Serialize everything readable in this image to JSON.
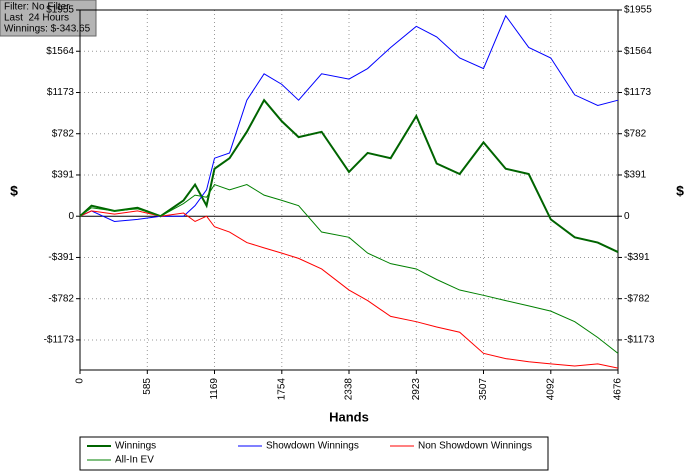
{
  "chart_data": {
    "type": "line",
    "annotations": [
      "Filter: No Filter",
      "Last  24 Hours",
      "Winnings: $-343.65"
    ],
    "x_label": "Hands",
    "y_label": "$",
    "y2_label": "$",
    "x": [
      0,
      100,
      300,
      500,
      700,
      900,
      1000,
      1100,
      1169,
      1300,
      1450,
      1600,
      1754,
      1900,
      2100,
      2338,
      2500,
      2700,
      2923,
      3100,
      3300,
      3507,
      3700,
      3900,
      4092,
      4300,
      4500,
      4676
    ],
    "series": [
      {
        "name": "Winnings",
        "color": "#006400",
        "width": 2,
        "values": [
          0,
          100,
          50,
          80,
          0,
          150,
          300,
          100,
          450,
          550,
          800,
          1100,
          900,
          750,
          800,
          420,
          600,
          550,
          950,
          500,
          400,
          700,
          450,
          400,
          -30,
          -200,
          -250,
          -340
        ]
      },
      {
        "name": "Showdown Winnings",
        "color": "#0000ff",
        "width": 1,
        "values": [
          0,
          50,
          -50,
          -30,
          0,
          0,
          100,
          250,
          550,
          600,
          1100,
          1350,
          1250,
          1100,
          1350,
          1300,
          1400,
          1600,
          1800,
          1700,
          1500,
          1400,
          1900,
          1600,
          1500,
          1150,
          1050,
          1100
        ]
      },
      {
        "name": "Non Showdown Winnings",
        "color": "#ff0000",
        "width": 1,
        "values": [
          0,
          50,
          20,
          50,
          0,
          30,
          -50,
          0,
          -100,
          -150,
          -250,
          -300,
          -350,
          -400,
          -500,
          -700,
          -800,
          -950,
          -1000,
          -1050,
          -1100,
          -1300,
          -1350,
          -1380,
          -1400,
          -1420,
          -1400,
          -1440
        ]
      },
      {
        "name": "All-In EV",
        "color": "#008000",
        "width": 1,
        "values": [
          0,
          80,
          50,
          70,
          0,
          120,
          200,
          180,
          300,
          250,
          300,
          200,
          150,
          100,
          -150,
          -200,
          -350,
          -450,
          -500,
          -600,
          -700,
          -750,
          -800,
          -850,
          -900,
          -1000,
          -1150,
          -1300
        ]
      }
    ],
    "xlim": [
      0,
      4676
    ],
    "xticks": [
      0,
      585,
      1169,
      1754,
      2338,
      2923,
      3507,
      4092,
      4676
    ],
    "ylim": [
      -1458,
      1955
    ],
    "yticks": [
      {
        "value": 1955,
        "label": "$1955"
      },
      {
        "value": 1564,
        "label": "$1564"
      },
      {
        "value": 1173,
        "label": "$1173"
      },
      {
        "value": 782,
        "label": "$782"
      },
      {
        "value": 391,
        "label": "$391"
      },
      0,
      {
        "value": -391,
        "label": "-$391"
      },
      {
        "value": -782,
        "label": "-$782"
      },
      {
        "value": -1173,
        "label": "-$1173"
      }
    ],
    "grid": true
  }
}
